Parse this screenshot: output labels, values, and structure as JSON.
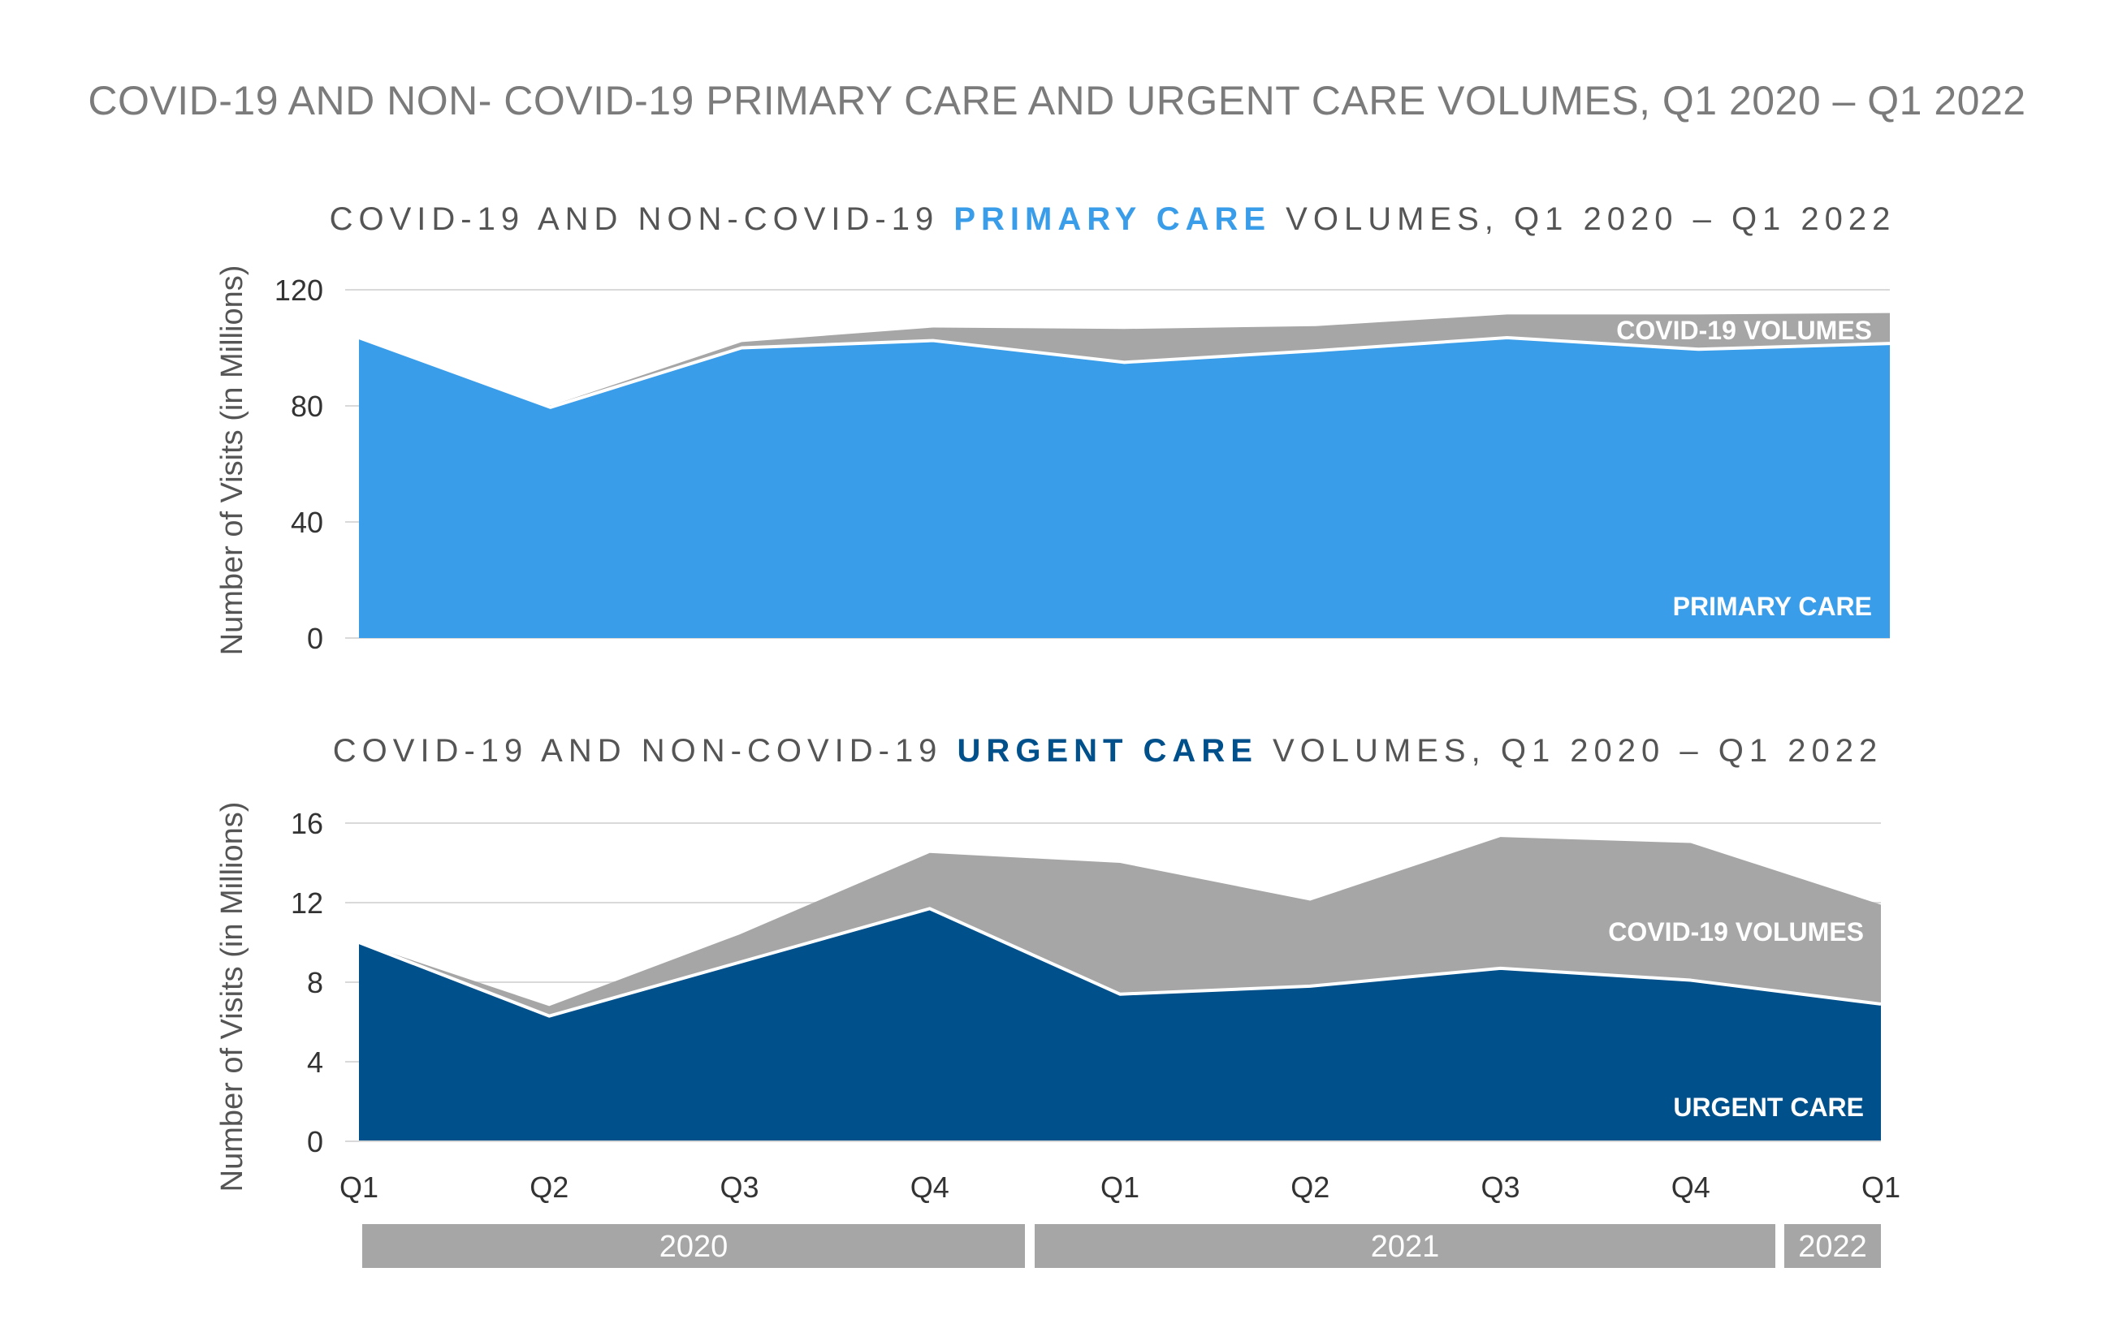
{
  "title": "COVID-19 AND NON- COVID-19 PRIMARY CARE AND URGENT CARE VOLUMES, Q1 2020 – Q1 2022",
  "colors": {
    "primary": "#3a9de9",
    "urgent": "#00508c",
    "covid": "#a6a6a6",
    "years": "#a6a6a6"
  },
  "x_ticks": [
    "Q1",
    "Q2",
    "Q3",
    "Q4",
    "Q1",
    "Q2",
    "Q3",
    "Q4",
    "Q1"
  ],
  "years": [
    "2020",
    "2021",
    "2022"
  ],
  "chart_data": [
    {
      "type": "area",
      "stacked": true,
      "title": {
        "pre": "COVID-19 AND NON-COVID-19 ",
        "highlight": "PRIMARY CARE",
        "post": " VOLUMES, Q1 2020 – Q1 2022"
      },
      "ylabel": "Number of Visits (in Millions)",
      "ylim": [
        0,
        120
      ],
      "yticks": [
        0,
        40,
        80,
        120
      ],
      "categories": [
        "Q1 2020",
        "Q2 2020",
        "Q3 2020",
        "Q4 2020",
        "Q1 2021",
        "Q2 2021",
        "Q3 2021",
        "Q4 2021",
        "Q1 2022"
      ],
      "series": [
        {
          "name": "PRIMARY CARE",
          "values": [
            103.5,
            79.5,
            100,
            102.5,
            95,
            99,
            103.5,
            99.5,
            101.5
          ]
        },
        {
          "name": "COVID-19 VOLUMES",
          "values": [
            0,
            0.5,
            2,
            4.5,
            11.5,
            8.5,
            8,
            12,
            10.5
          ]
        }
      ]
    },
    {
      "type": "area",
      "stacked": true,
      "title": {
        "pre": "COVID-19 AND NON-COVID-19 ",
        "highlight": "URGENT CARE",
        "post": " VOLUMES, Q1 2020 – Q1 2022"
      },
      "ylabel": "Number of Visits (in Millions)",
      "ylim": [
        0,
        16
      ],
      "yticks": [
        0,
        4,
        8,
        12,
        16
      ],
      "categories": [
        "Q1 2020",
        "Q2 2020",
        "Q3 2020",
        "Q4 2020",
        "Q1 2021",
        "Q2 2021",
        "Q3 2021",
        "Q4 2021",
        "Q1 2022"
      ],
      "series": [
        {
          "name": "URGENT CARE",
          "values": [
            10,
            6.3,
            9,
            11.7,
            7.4,
            7.8,
            8.7,
            8.1,
            6.9
          ]
        },
        {
          "name": "COVID-19 VOLUMES",
          "values": [
            0,
            0.5,
            1.4,
            2.8,
            6.6,
            4.3,
            6.6,
            6.9,
            5
          ]
        }
      ]
    }
  ]
}
